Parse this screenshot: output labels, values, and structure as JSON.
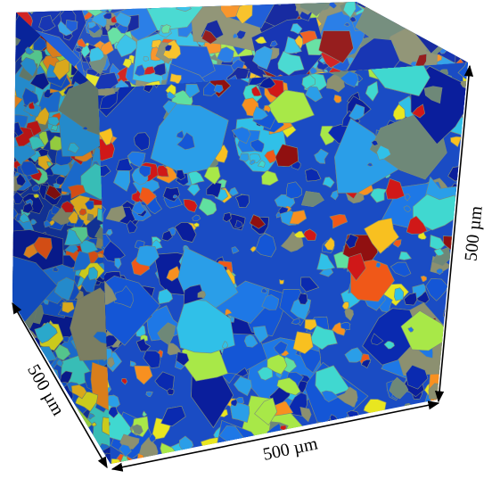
{
  "dimensions": {
    "depth": "500 µm",
    "width": "500 µm",
    "height": "500 µm"
  }
}
